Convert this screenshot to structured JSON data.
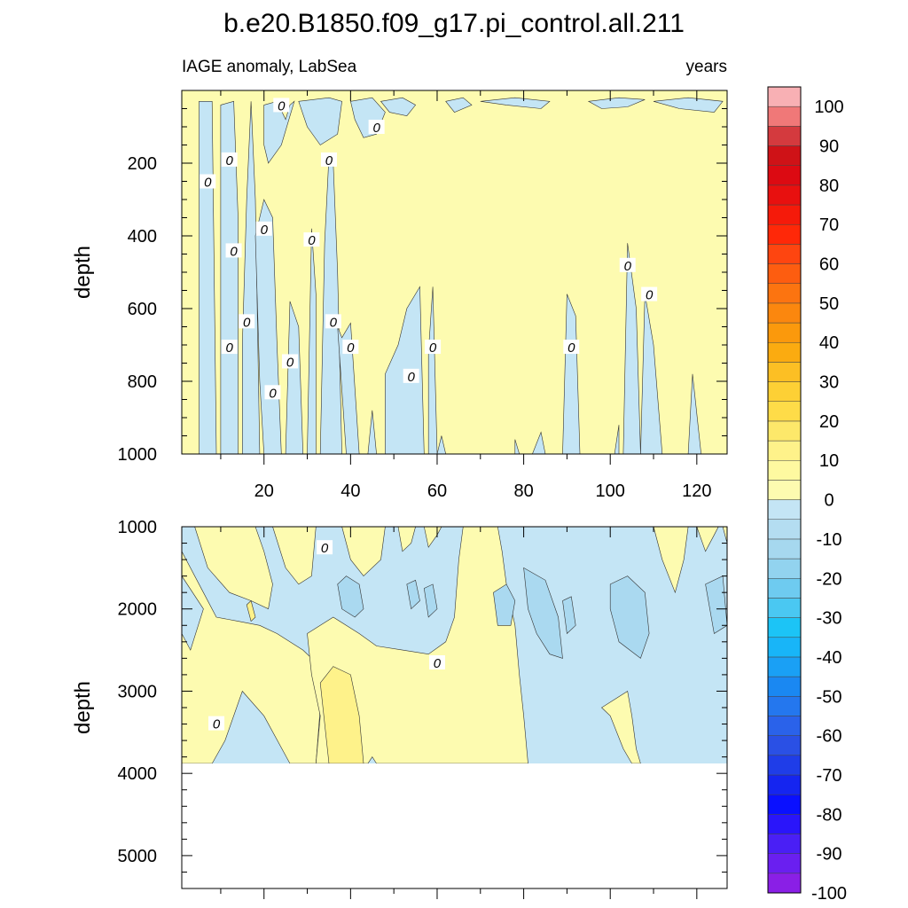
{
  "chart_data": {
    "type": "heatmap",
    "title": "b.e20.B1850.f09_g17.pi_control.all.211",
    "subtitle_left": "IAGE anomaly, LabSea",
    "subtitle_right": "years",
    "x": {
      "range": [
        1,
        127
      ],
      "ticks": [
        20,
        40,
        60,
        80,
        100,
        120
      ],
      "tick_labels": [
        "20",
        "40",
        "60",
        "80",
        "100",
        "120"
      ]
    },
    "top_panel": {
      "ylabel": "depth",
      "yrange": [
        0,
        1000
      ],
      "ticks": [
        200,
        400,
        600,
        800,
        1000
      ],
      "tick_labels": [
        "200",
        "400",
        "600",
        "800",
        "1000"
      ]
    },
    "bottom_panel": {
      "ylabel": "depth",
      "yrange": [
        1000,
        5400
      ],
      "ticks": [
        1000,
        2000,
        3000,
        4000,
        5000
      ],
      "tick_labels": [
        "1000",
        "2000",
        "3000",
        "4000",
        "5000"
      ],
      "data_bottom": 3880
    },
    "contour_label": "0",
    "colorbar": {
      "labels": [
        "100",
        "90",
        "80",
        "70",
        "60",
        "50",
        "40",
        "30",
        "20",
        "10",
        "0",
        "-10",
        "-20",
        "-30",
        "-40",
        "-50",
        "-60",
        "-70",
        "-80",
        "-90",
        "-100"
      ],
      "colors": [
        "#8a1fe6",
        "#6a1ff0",
        "#4a1ff5",
        "#2a15fa",
        "#0a10ff",
        "#1525f0",
        "#1f3de8",
        "#2a50e5",
        "#2a62ea",
        "#2477ee",
        "#1a88f2",
        "#1aa0f5",
        "#18b5f8",
        "#1cc4f6",
        "#4ac8f2",
        "#6ecbf0",
        "#92d3ef",
        "#a6d8ef",
        "#b4ddf1",
        "#c4e5f5",
        "#fdfbb0",
        "#fef9a0",
        "#fef28a",
        "#fde86a",
        "#fedc48",
        "#fdd035",
        "#fcbf24",
        "#fbab10",
        "#fb990c",
        "#fb870e",
        "#fc7410",
        "#fd5d10",
        "#fe4510",
        "#ff2808",
        "#f51a0a",
        "#e8100f",
        "#dc0a12",
        "#cf1217",
        "#d43a3e",
        "#f07878",
        "#f8b0b4"
      ]
    },
    "colors": {
      "positive_fill": "#fdfbb0",
      "negative_fill": "#c4e5f5",
      "deeper_negative": "#aad9f0",
      "deeper_positive": "#fef28a"
    },
    "top_label_markers": [
      [
        24,
        40
      ],
      [
        46,
        100
      ],
      [
        12,
        190
      ],
      [
        35,
        190
      ],
      [
        7,
        250
      ],
      [
        20,
        380
      ],
      [
        31,
        410
      ],
      [
        13,
        440
      ],
      [
        104,
        480
      ],
      [
        109,
        560
      ],
      [
        16,
        635
      ],
      [
        36,
        635
      ],
      [
        12,
        705
      ],
      [
        40,
        705
      ],
      [
        59,
        705
      ],
      [
        91,
        705
      ],
      [
        26,
        745
      ],
      [
        54,
        785
      ],
      [
        22,
        830
      ]
    ],
    "bottom_label_markers": [
      [
        34,
        1250
      ],
      [
        60,
        2650
      ],
      [
        9,
        3390
      ]
    ],
    "top_negative_regions": [
      [
        [
          5,
          1000
        ],
        [
          5,
          30
        ],
        [
          8,
          30
        ],
        [
          9,
          1000
        ]
      ],
      [
        [
          10,
          1000
        ],
        [
          10,
          40
        ],
        [
          13,
          30
        ],
        [
          14,
          350
        ],
        [
          14,
          1000
        ]
      ],
      [
        [
          15,
          1000
        ],
        [
          15,
          700
        ],
        [
          16,
          300
        ],
        [
          17,
          30
        ],
        [
          18,
          300
        ],
        [
          19,
          1000
        ]
      ],
      [
        [
          20,
          40
        ],
        [
          23,
          30
        ],
        [
          25,
          80
        ],
        [
          26,
          40
        ],
        [
          27,
          30
        ],
        [
          24,
          150
        ],
        [
          21,
          200
        ],
        [
          20,
          150
        ]
      ],
      [
        [
          18,
          400
        ],
        [
          20,
          300
        ],
        [
          22,
          350
        ],
        [
          23,
          700
        ],
        [
          24,
          1000
        ],
        [
          20,
          1000
        ],
        [
          19,
          800
        ]
      ],
      [
        [
          25,
          1000
        ],
        [
          26,
          580
        ],
        [
          28,
          650
        ],
        [
          29,
          1000
        ]
      ],
      [
        [
          30,
          1000
        ],
        [
          31,
          380
        ],
        [
          32,
          560
        ],
        [
          32,
          1000
        ]
      ],
      [
        [
          33,
          1000
        ],
        [
          34,
          420
        ],
        [
          35,
          180
        ],
        [
          36,
          200
        ],
        [
          37,
          500
        ],
        [
          38,
          1000
        ]
      ],
      [
        [
          37,
          650
        ],
        [
          38,
          680
        ],
        [
          40,
          640
        ],
        [
          42,
          1000
        ],
        [
          39,
          1000
        ]
      ],
      [
        [
          28,
          30
        ],
        [
          35,
          20
        ],
        [
          38,
          30
        ],
        [
          37,
          120
        ],
        [
          33,
          150
        ],
        [
          30,
          100
        ]
      ],
      [
        [
          40,
          30
        ],
        [
          45,
          20
        ],
        [
          48,
          60
        ],
        [
          46,
          120
        ],
        [
          43,
          130
        ],
        [
          41,
          80
        ]
      ],
      [
        [
          47,
          30
        ],
        [
          52,
          20
        ],
        [
          55,
          40
        ],
        [
          53,
          70
        ],
        [
          49,
          60
        ]
      ],
      [
        [
          44,
          1000
        ],
        [
          45,
          880
        ],
        [
          46,
          1000
        ]
      ],
      [
        [
          48,
          1000
        ],
        [
          48,
          780
        ],
        [
          51,
          700
        ],
        [
          53,
          600
        ],
        [
          56,
          540
        ],
        [
          57,
          1000
        ]
      ],
      [
        [
          58,
          1000
        ],
        [
          58,
          720
        ],
        [
          59,
          540
        ],
        [
          60,
          1000
        ]
      ],
      [
        [
          60,
          1000
        ],
        [
          61,
          950
        ],
        [
          62,
          1000
        ]
      ],
      [
        [
          62,
          30
        ],
        [
          66,
          20
        ],
        [
          68,
          40
        ],
        [
          64,
          60
        ]
      ],
      [
        [
          78,
          1000
        ],
        [
          78,
          960
        ],
        [
          79,
          1000
        ]
      ],
      [
        [
          82,
          1000
        ],
        [
          84,
          940
        ],
        [
          85,
          1000
        ]
      ],
      [
        [
          89,
          1000
        ],
        [
          90,
          560
        ],
        [
          92,
          620
        ],
        [
          93,
          1000
        ]
      ],
      [
        [
          101,
          1000
        ],
        [
          102,
          920
        ],
        [
          102,
          1000
        ]
      ],
      [
        [
          103,
          1000
        ],
        [
          104,
          420
        ],
        [
          106,
          600
        ],
        [
          107,
          1000
        ]
      ],
      [
        [
          107,
          1000
        ],
        [
          108,
          560
        ],
        [
          110,
          700
        ],
        [
          112,
          1000
        ]
      ],
      [
        [
          118,
          1000
        ],
        [
          119,
          780
        ],
        [
          121,
          1000
        ]
      ],
      [
        [
          70,
          30
        ],
        [
          78,
          20
        ],
        [
          86,
          30
        ],
        [
          84,
          50
        ],
        [
          76,
          40
        ]
      ],
      [
        [
          95,
          30
        ],
        [
          102,
          20
        ],
        [
          108,
          25
        ],
        [
          104,
          45
        ],
        [
          98,
          50
        ]
      ],
      [
        [
          110,
          30
        ],
        [
          118,
          20
        ],
        [
          126,
          30
        ],
        [
          124,
          60
        ],
        [
          116,
          50
        ]
      ]
    ],
    "bottom_positive_regions": [
      [
        [
          1,
          1000
        ],
        [
          1,
          1300
        ],
        [
          6,
          1800
        ],
        [
          9,
          2100
        ],
        [
          14,
          2150
        ],
        [
          19,
          2200
        ],
        [
          23,
          2300
        ],
        [
          29,
          2500
        ],
        [
          31,
          2600
        ],
        [
          33,
          3200
        ],
        [
          32,
          3880
        ],
        [
          26,
          3880
        ],
        [
          20,
          3300
        ],
        [
          15,
          3000
        ],
        [
          11,
          3600
        ],
        [
          8,
          3880
        ],
        [
          1,
          3880
        ],
        [
          1,
          2300
        ],
        [
          3,
          2500
        ],
        [
          6,
          2000
        ],
        [
          1,
          1600
        ]
      ],
      [
        [
          4,
          1000
        ],
        [
          7,
          1500
        ],
        [
          12,
          1800
        ],
        [
          17,
          1900
        ],
        [
          21,
          2000
        ],
        [
          22,
          1700
        ],
        [
          20,
          1300
        ],
        [
          18,
          1000
        ]
      ],
      [
        [
          22,
          1000
        ],
        [
          25,
          1500
        ],
        [
          28,
          1700
        ],
        [
          31,
          1600
        ],
        [
          32,
          1000
        ]
      ],
      [
        [
          30,
          2300
        ],
        [
          36,
          2100
        ],
        [
          42,
          2300
        ],
        [
          46,
          2450
        ],
        [
          52,
          2500
        ],
        [
          58,
          2550
        ],
        [
          62,
          2400
        ],
        [
          64,
          2100
        ],
        [
          65,
          1400
        ],
        [
          66,
          1000
        ],
        [
          74,
          1000
        ],
        [
          75,
          1300
        ],
        [
          76,
          1700
        ],
        [
          78,
          2200
        ],
        [
          79,
          2800
        ],
        [
          80,
          3300
        ],
        [
          81,
          3880
        ],
        [
          46,
          3880
        ],
        [
          45,
          3800
        ],
        [
          44,
          3880
        ],
        [
          32,
          3880
        ],
        [
          33,
          3300
        ],
        [
          31,
          2800
        ]
      ],
      [
        [
          38,
          1000
        ],
        [
          40,
          1400
        ],
        [
          43,
          1600
        ],
        [
          47,
          1400
        ],
        [
          48,
          1000
        ]
      ],
      [
        [
          51,
          1000
        ],
        [
          52,
          1300
        ],
        [
          54,
          1200
        ],
        [
          55,
          1000
        ]
      ],
      [
        [
          57,
          1000
        ],
        [
          58,
          1250
        ],
        [
          60,
          1100
        ],
        [
          61,
          1000
        ]
      ],
      [
        [
          104,
          3000
        ],
        [
          105,
          3300
        ],
        [
          106,
          3700
        ],
        [
          107,
          3880
        ],
        [
          105,
          3880
        ],
        [
          103,
          3700
        ],
        [
          100,
          3300
        ],
        [
          98,
          3200
        ],
        [
          101,
          3100
        ]
      ],
      [
        [
          110,
          1000
        ],
        [
          112,
          1400
        ],
        [
          115,
          1800
        ],
        [
          117,
          1400
        ],
        [
          118,
          1000
        ]
      ],
      [
        [
          120,
          1000
        ],
        [
          122,
          1300
        ],
        [
          124,
          1100
        ],
        [
          125,
          1000
        ]
      ],
      [
        [
          126,
          1000
        ],
        [
          127,
          1000
        ],
        [
          127,
          1200
        ]
      ]
    ],
    "bottom_deep_negative_regions": [
      [
        [
          37,
          1700
        ],
        [
          39,
          1600
        ],
        [
          42,
          1700
        ],
        [
          43,
          2000
        ],
        [
          41,
          2100
        ],
        [
          38,
          2000
        ]
      ],
      [
        [
          53,
          1700
        ],
        [
          55,
          1650
        ],
        [
          56,
          1900
        ],
        [
          54,
          2000
        ]
      ],
      [
        [
          57,
          1750
        ],
        [
          59,
          1700
        ],
        [
          60,
          2000
        ],
        [
          58,
          2100
        ]
      ],
      [
        [
          73,
          1800
        ],
        [
          76,
          1700
        ],
        [
          78,
          1900
        ],
        [
          77,
          2200
        ],
        [
          74,
          2200
        ]
      ],
      [
        [
          80,
          1500
        ],
        [
          85,
          1650
        ],
        [
          88,
          2100
        ],
        [
          89,
          2600
        ],
        [
          86,
          2550
        ],
        [
          83,
          2300
        ],
        [
          81,
          2000
        ]
      ],
      [
        [
          89,
          1900
        ],
        [
          91,
          1850
        ],
        [
          92,
          2200
        ],
        [
          90,
          2300
        ]
      ],
      [
        [
          100,
          1700
        ],
        [
          104,
          1600
        ],
        [
          108,
          1800
        ],
        [
          109,
          2300
        ],
        [
          107,
          2600
        ],
        [
          102,
          2400
        ],
        [
          100,
          2000
        ]
      ],
      [
        [
          122,
          1700
        ],
        [
          126,
          1600
        ],
        [
          127,
          2200
        ],
        [
          124,
          2300
        ]
      ]
    ],
    "bottom_deep_positive_regions": [
      [
        [
          33,
          2900
        ],
        [
          36,
          2700
        ],
        [
          40,
          2800
        ],
        [
          42,
          3300
        ],
        [
          43,
          3880
        ],
        [
          35,
          3880
        ]
      ]
    ],
    "bottom_small_positive_regions": [
      [
        [
          16,
          1950
        ],
        [
          17,
          1900
        ],
        [
          18,
          2100
        ],
        [
          17,
          2150
        ]
      ]
    ]
  }
}
